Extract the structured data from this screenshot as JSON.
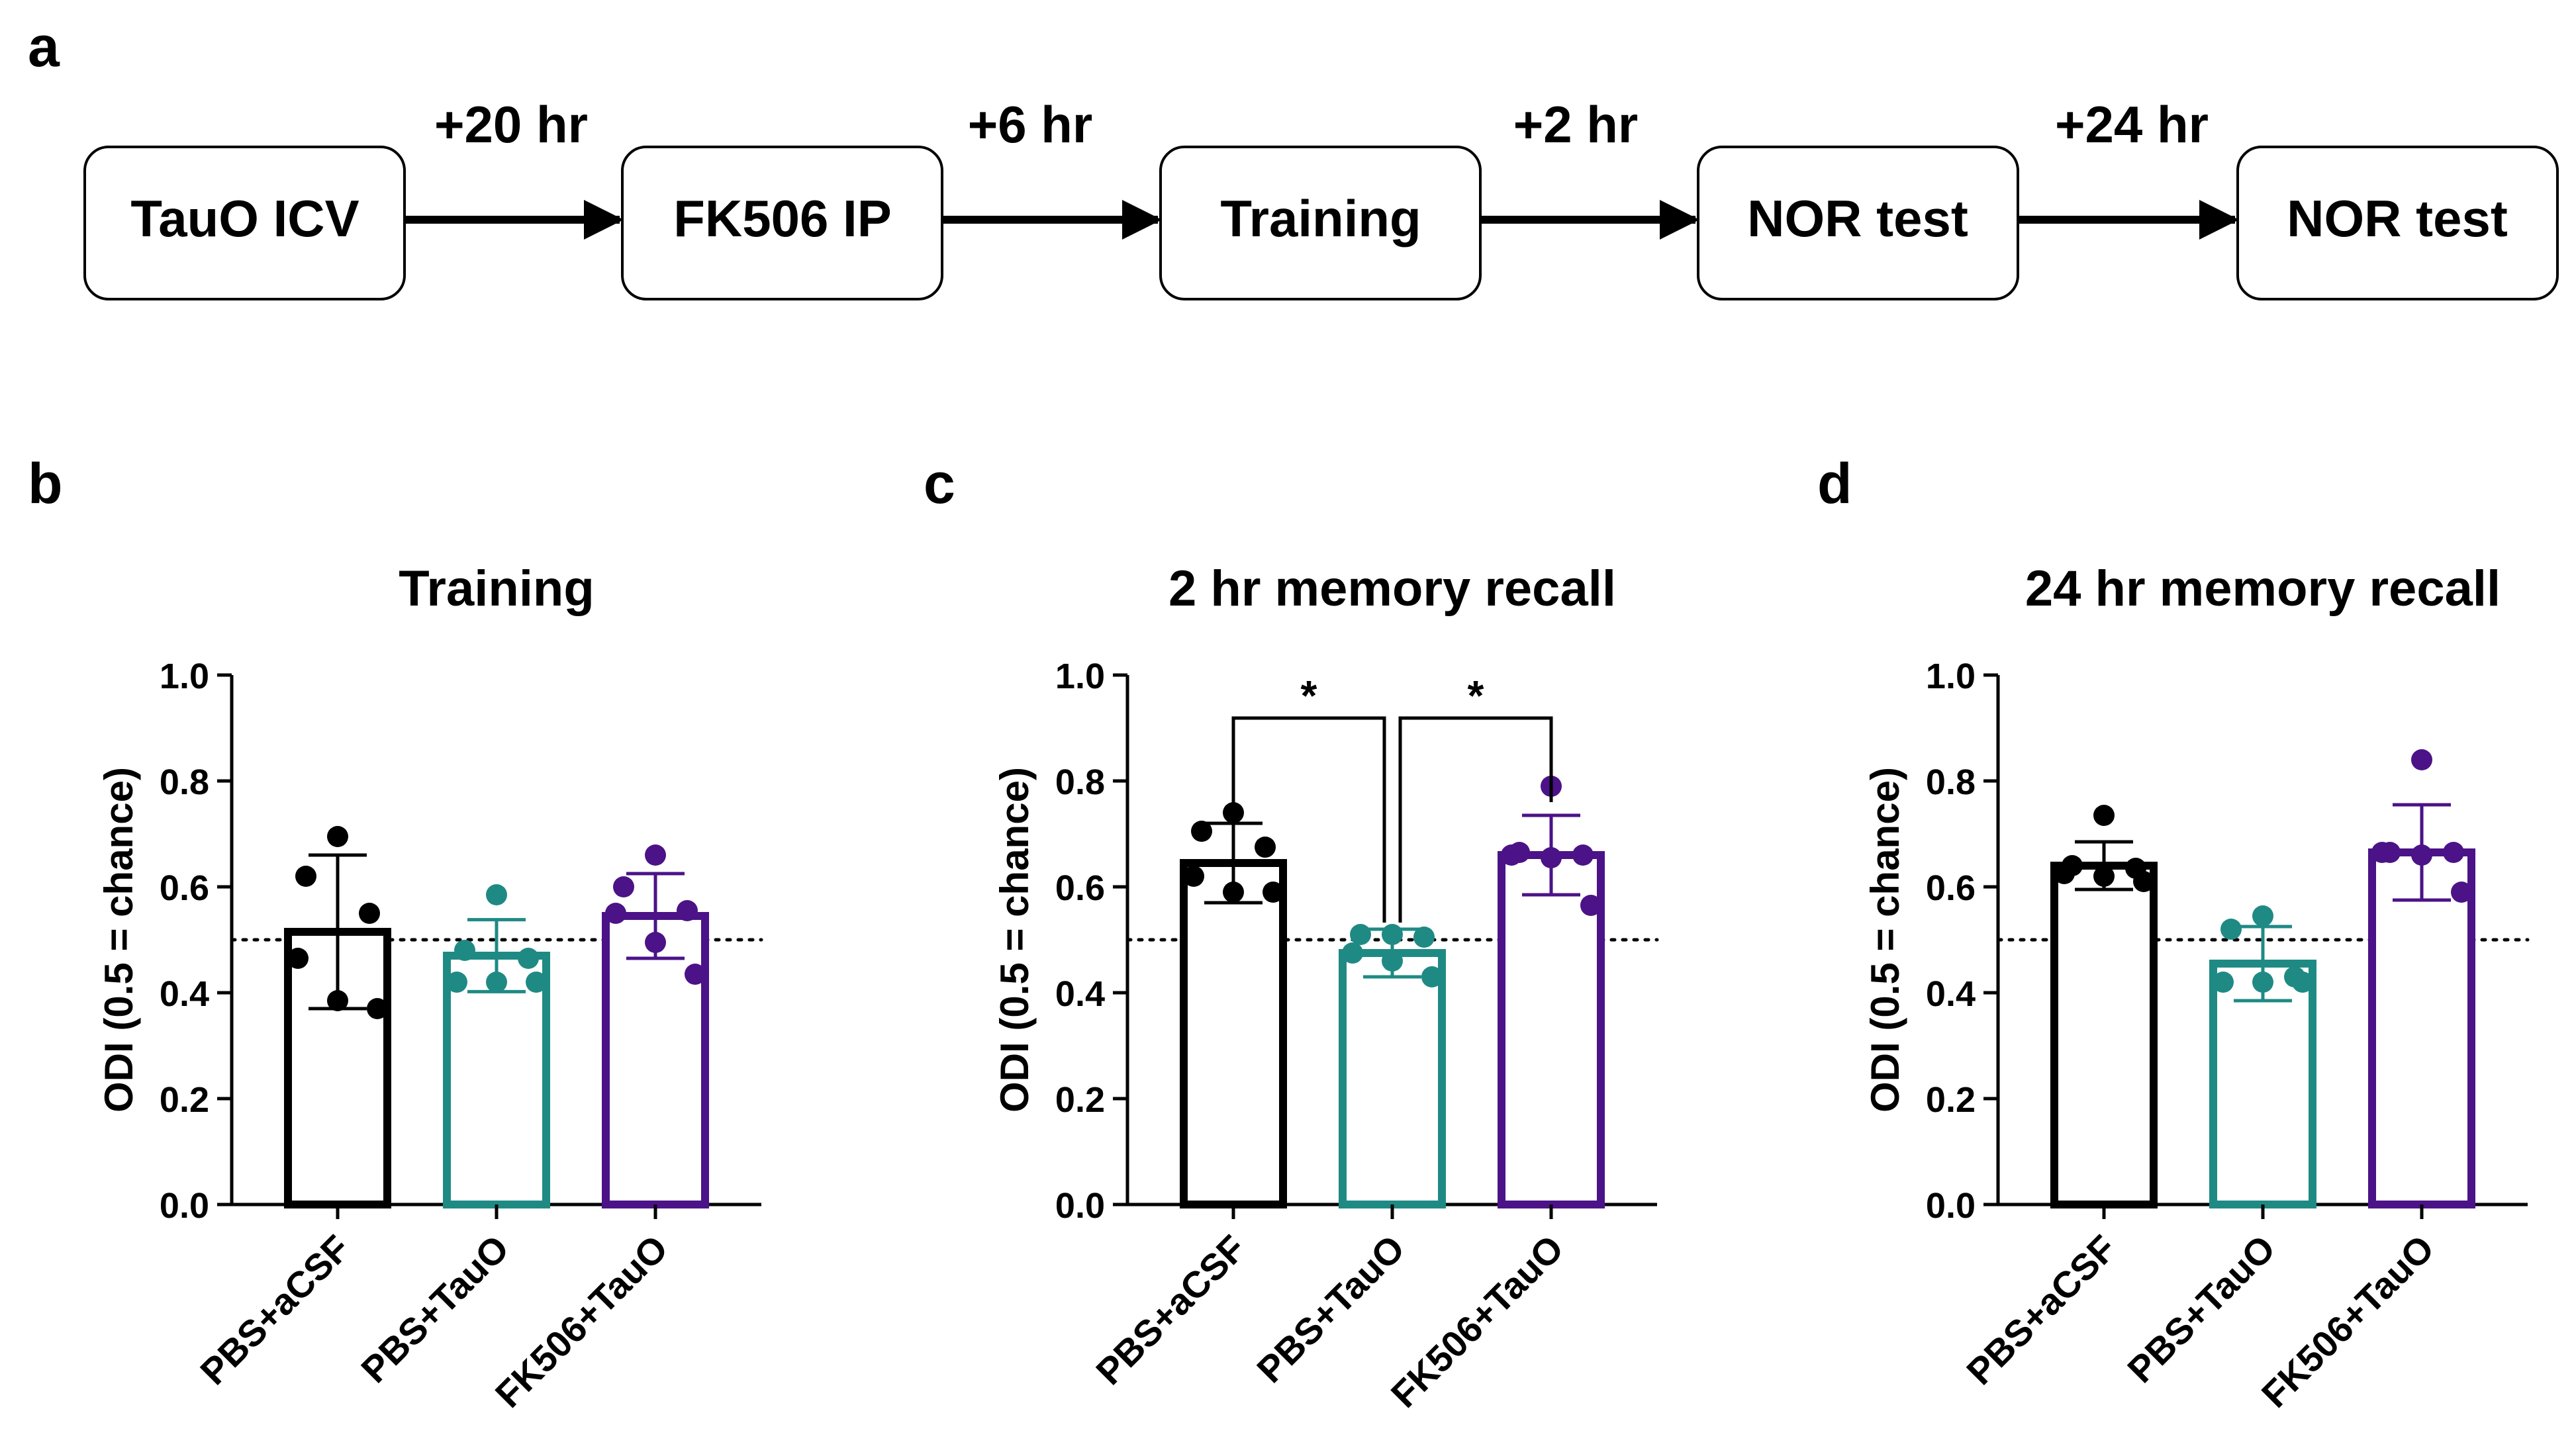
{
  "panel_labels": {
    "a": "a",
    "b": "b",
    "c": "c",
    "d": "d"
  },
  "timeline": {
    "boxes": [
      "TauO ICV",
      "FK506 IP",
      "Training",
      "NOR test",
      "NOR test"
    ],
    "intervals": [
      "+20 hr",
      "+6 hr",
      "+2 hr",
      "+24 hr"
    ]
  },
  "colors": {
    "PBS+aCSF": "#000000",
    "PBS+TauO": "#1f8a84",
    "FK506+TauO": "#4b1387"
  },
  "chance_level": 0.5,
  "chart_data": [
    {
      "type": "bar",
      "panel": "b",
      "title": "Training",
      "ylabel": "ODI (0.5 = chance)",
      "xlabel": "",
      "ylim": [
        0,
        1.0
      ],
      "yticks": [
        "0.0",
        "0.2",
        "0.4",
        "0.6",
        "0.8",
        "1.0"
      ],
      "categories": [
        "PBS+aCSF",
        "PBS+TauO",
        "FK506+TauO"
      ],
      "values": [
        0.515,
        0.47,
        0.545
      ],
      "sd": [
        0.145,
        0.068,
        0.08
      ],
      "points": [
        [
          0.695,
          0.62,
          0.55,
          0.465,
          0.385,
          0.37
        ],
        [
          0.585,
          0.48,
          0.465,
          0.42,
          0.42,
          0.42
        ],
        [
          0.66,
          0.6,
          0.555,
          0.55,
          0.495,
          0.435
        ]
      ],
      "significance": []
    },
    {
      "type": "bar",
      "panel": "c",
      "title": "2 hr memory recall",
      "ylabel": "ODI (0.5 = chance)",
      "xlabel": "",
      "ylim": [
        0,
        1.0
      ],
      "yticks": [
        "0.0",
        "0.2",
        "0.4",
        "0.6",
        "0.8",
        "1.0"
      ],
      "categories": [
        "PBS+aCSF",
        "PBS+TauO",
        "FK506+TauO"
      ],
      "values": [
        0.645,
        0.475,
        0.66
      ],
      "sd": [
        0.075,
        0.045,
        0.075
      ],
      "points": [
        [
          0.74,
          0.705,
          0.675,
          0.62,
          0.59,
          0.59
        ],
        [
          0.51,
          0.51,
          0.505,
          0.475,
          0.46,
          0.43
        ],
        [
          0.79,
          0.665,
          0.66,
          0.66,
          0.655,
          0.565
        ]
      ],
      "significance": [
        {
          "from": 0,
          "to": 1,
          "label": "*"
        },
        {
          "from": 1,
          "to": 2,
          "label": "*"
        }
      ]
    },
    {
      "type": "bar",
      "panel": "d",
      "title": "24 hr memory recall",
      "ylabel": "ODI (0.5 = chance)",
      "xlabel": "",
      "ylim": [
        0,
        1.0
      ],
      "yticks": [
        "0.0",
        "0.2",
        "0.4",
        "0.6",
        "0.8",
        "1.0"
      ],
      "categories": [
        "PBS+aCSF",
        "PBS+TauO",
        "FK506+TauO"
      ],
      "values": [
        0.64,
        0.455,
        0.665
      ],
      "sd": [
        0.045,
        0.07,
        0.09
      ],
      "points": [
        [
          0.735,
          0.64,
          0.635,
          0.625,
          0.62,
          0.61
        ],
        [
          0.545,
          0.52,
          0.43,
          0.42,
          0.42,
          0.42
        ],
        [
          0.84,
          0.665,
          0.665,
          0.665,
          0.66,
          0.59
        ]
      ],
      "significance": []
    }
  ]
}
